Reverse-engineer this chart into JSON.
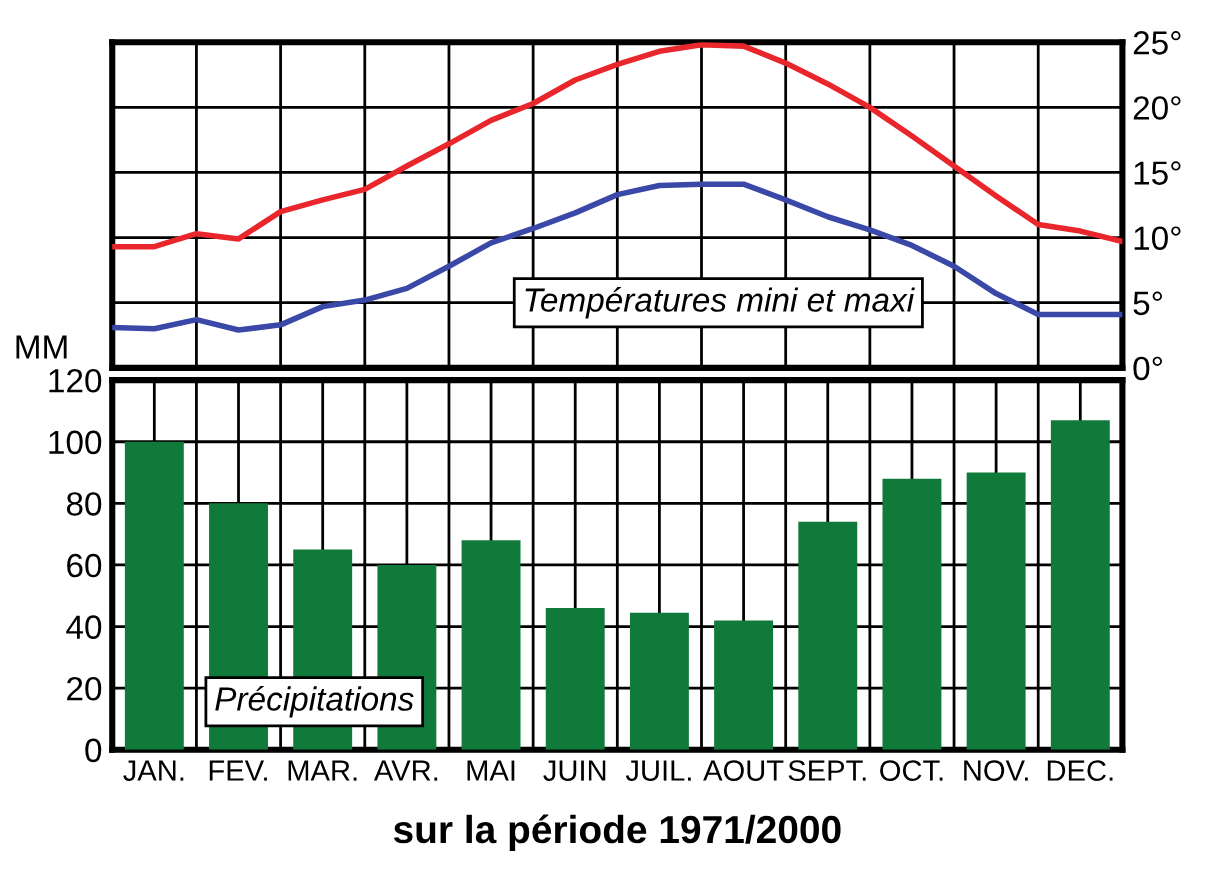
{
  "chart_data": [
    {
      "type": "line",
      "categories": [
        null,
        null,
        null,
        null,
        null,
        null,
        null,
        null,
        null,
        null,
        null,
        null,
        null,
        null,
        null,
        null,
        null,
        null,
        null,
        null,
        null,
        null,
        null,
        null,
        null
      ],
      "ylim": [
        0,
        25
      ],
      "yticks": [
        {
          "value": 0,
          "label": "0°"
        },
        {
          "value": 5,
          "label": "5°"
        },
        {
          "value": 10,
          "label": "10°"
        },
        {
          "value": 15,
          "label": "15°"
        },
        {
          "value": 20,
          "label": "20°"
        },
        {
          "value": 25,
          "label": "25°"
        }
      ],
      "tick_labels": "y",
      "grid": true,
      "annotations": [
        "Températures mini et maxi"
      ],
      "series": [
        {
          "color": "#e8262b",
          "values": [
            9.3,
            9.3,
            10.3,
            9.9,
            12.0,
            12.9,
            13.7,
            15.5,
            17.2,
            19.0,
            20.3,
            22.1,
            23.3,
            24.3,
            24.8,
            24.7,
            23.4,
            21.8,
            20.0,
            17.8,
            15.5,
            13.2,
            11.0,
            10.5,
            9.7
          ]
        },
        {
          "color": "#3a48a8",
          "values": [
            3.1,
            3.0,
            3.7,
            2.9,
            3.3,
            4.7,
            5.2,
            6.1,
            7.8,
            9.6,
            10.7,
            11.9,
            13.3,
            14.0,
            14.1,
            14.1,
            12.9,
            11.6,
            10.6,
            9.4,
            7.8,
            5.7,
            4.1,
            4.1,
            4.1
          ]
        }
      ]
    },
    {
      "type": "bar",
      "categories": [
        "JAN.",
        "FEV.",
        "MAR.",
        "AVR.",
        "MAI",
        "JUIN",
        "JUIL.",
        "AOUT",
        "SEPT.",
        "OCT.",
        "NOV.",
        "DEC."
      ],
      "values": [
        100,
        80,
        65,
        60,
        68,
        46,
        44.5,
        42,
        74,
        88,
        90,
        107
      ],
      "color": "#0f7a3a",
      "ylim": [
        0,
        120
      ],
      "yticks": [
        0,
        20,
        40,
        60,
        80,
        100,
        120
      ],
      "ylabel": "MM",
      "xlabel": "sur la période 1971/2000",
      "grid": true,
      "annotations": [
        "Précipitations"
      ]
    }
  ]
}
